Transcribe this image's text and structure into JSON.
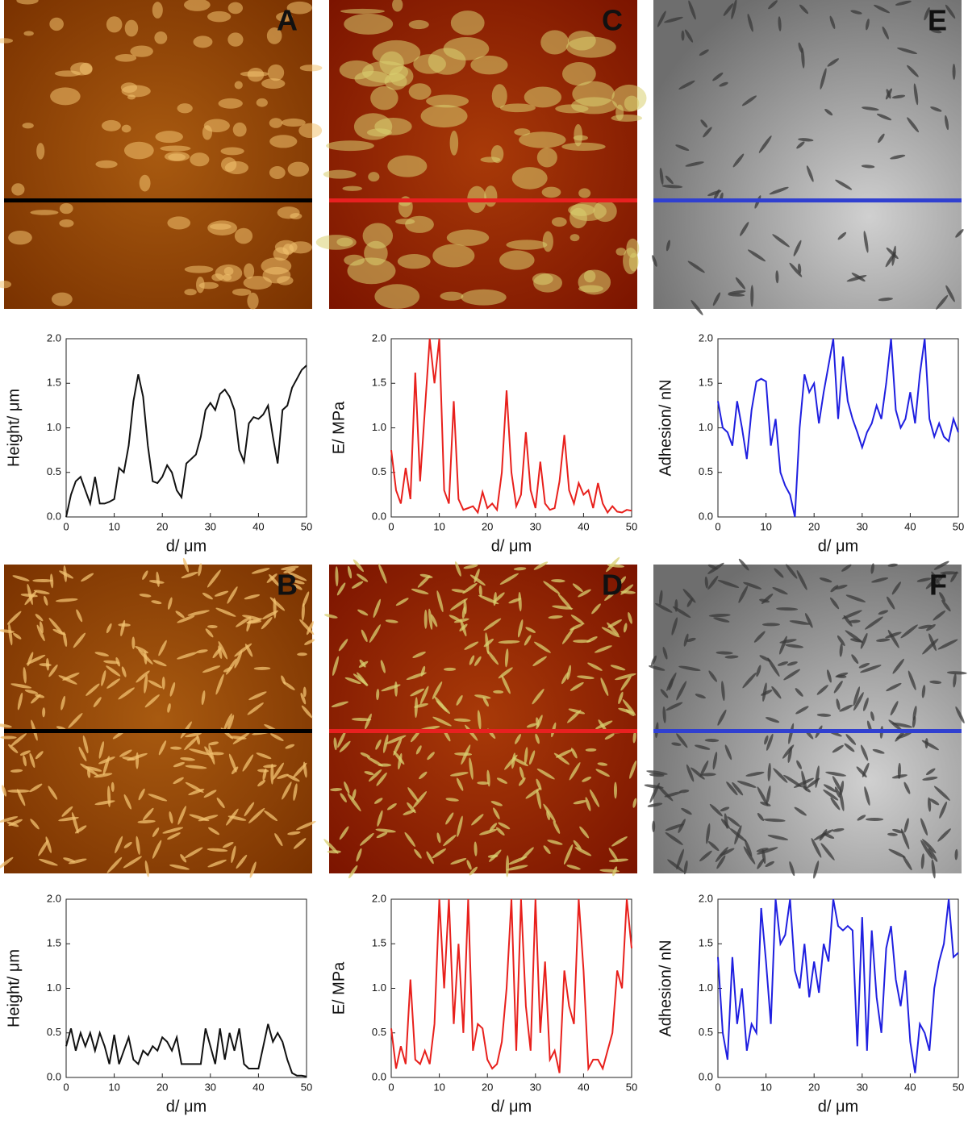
{
  "panels": [
    "A",
    "B",
    "C",
    "D",
    "E",
    "F"
  ],
  "chart_data": [
    {
      "type": "line",
      "ylabel": "Height/ μm",
      "xlabel": "d/ μm",
      "color": "#111111",
      "x": [
        0,
        1,
        2,
        3,
        4,
        5,
        6,
        7,
        8,
        9,
        10,
        11,
        12,
        13,
        14,
        15,
        16,
        17,
        18,
        19,
        20,
        21,
        22,
        23,
        24,
        25,
        26,
        27,
        28,
        29,
        30,
        31,
        32,
        33,
        34,
        35,
        36,
        37,
        38,
        39,
        40,
        41,
        42,
        43,
        44,
        45,
        46,
        47,
        48,
        49,
        50
      ],
      "values": [
        0,
        0.25,
        0.4,
        0.45,
        0.3,
        0.15,
        0.45,
        0.15,
        0.15,
        0.17,
        0.2,
        0.55,
        0.5,
        0.8,
        1.3,
        1.6,
        1.35,
        0.8,
        0.4,
        0.38,
        0.45,
        0.58,
        0.5,
        0.3,
        0.22,
        0.6,
        0.65,
        0.7,
        0.9,
        1.2,
        1.28,
        1.2,
        1.38,
        1.43,
        1.35,
        1.2,
        0.75,
        0.62,
        1.05,
        1.12,
        1.1,
        1.15,
        1.25,
        0.9,
        0.6,
        1.2,
        1.25,
        1.45,
        1.55,
        1.65,
        1.7
      ],
      "xlim": [
        0,
        50
      ],
      "ylim": [
        0,
        2
      ],
      "xticks": [
        0,
        10,
        20,
        30,
        40,
        50
      ],
      "yticks": [
        {
          "value": 0,
          "label": "0.0"
        },
        {
          "value": 0.5,
          "label": "0.5"
        },
        {
          "value": 1,
          "label": "1.0"
        },
        {
          "value": 1.5,
          "label": "1.5"
        },
        {
          "value": 2,
          "label": "2.0"
        }
      ]
    },
    {
      "type": "line",
      "ylabel": "E/ MPa",
      "xlabel": "d/ μm",
      "color": "#e8201c",
      "x": [
        0,
        1,
        2,
        3,
        4,
        5,
        6,
        7,
        8,
        9,
        10,
        11,
        12,
        13,
        14,
        15,
        16,
        17,
        18,
        19,
        20,
        21,
        22,
        23,
        24,
        25,
        26,
        27,
        28,
        29,
        30,
        31,
        32,
        33,
        34,
        35,
        36,
        37,
        38,
        39,
        40,
        41,
        42,
        43,
        44,
        45,
        46,
        47,
        48,
        49,
        50
      ],
      "values": [
        0.75,
        0.3,
        0.15,
        0.55,
        0.2,
        1.62,
        0.4,
        1.2,
        2,
        1.5,
        2,
        0.3,
        0.15,
        1.3,
        0.2,
        0.08,
        0.1,
        0.12,
        0.05,
        0.28,
        0.1,
        0.15,
        0.08,
        0.5,
        1.42,
        0.5,
        0.12,
        0.25,
        0.95,
        0.3,
        0.1,
        0.62,
        0.15,
        0.08,
        0.1,
        0.4,
        0.92,
        0.3,
        0.15,
        0.38,
        0.25,
        0.3,
        0.1,
        0.38,
        0.15,
        0.05,
        0.12,
        0.06,
        0.05,
        0.08,
        0.07
      ],
      "xlim": [
        0,
        50
      ],
      "ylim": [
        0,
        2
      ],
      "xticks": [
        0,
        10,
        20,
        30,
        40,
        50
      ],
      "yticks": [
        {
          "value": 0,
          "label": "0.0"
        },
        {
          "value": 0.5,
          "label": "0.5"
        },
        {
          "value": 1,
          "label": "1.0"
        },
        {
          "value": 1.5,
          "label": "1.5"
        },
        {
          "value": 2,
          "label": "2.0"
        }
      ]
    },
    {
      "type": "line",
      "ylabel": "Adhesion/ nN",
      "xlabel": "d/ μm",
      "color": "#1f1fe0",
      "x": [
        0,
        1,
        2,
        3,
        4,
        5,
        6,
        7,
        8,
        9,
        10,
        11,
        12,
        13,
        14,
        15,
        16,
        17,
        18,
        19,
        20,
        21,
        22,
        23,
        24,
        25,
        26,
        27,
        28,
        29,
        30,
        31,
        32,
        33,
        34,
        35,
        36,
        37,
        38,
        39,
        40,
        41,
        42,
        43,
        44,
        45,
        46,
        47,
        48,
        49,
        50
      ],
      "values": [
        1.3,
        1,
        0.95,
        0.8,
        1.3,
        1,
        0.65,
        1.2,
        1.52,
        1.55,
        1.52,
        0.8,
        1.1,
        0.5,
        0.35,
        0.25,
        0,
        1,
        1.6,
        1.4,
        1.5,
        1.05,
        1.4,
        1.7,
        2,
        1.1,
        1.8,
        1.3,
        1.1,
        0.95,
        0.78,
        0.95,
        1.05,
        1.25,
        1.1,
        1.5,
        2,
        1.2,
        1,
        1.1,
        1.4,
        1.05,
        1.6,
        2,
        1.1,
        0.9,
        1.05,
        0.9,
        0.85,
        1.1,
        0.95
      ],
      "xlim": [
        0,
        50
      ],
      "ylim": [
        0,
        2
      ],
      "xticks": [
        0,
        10,
        20,
        30,
        40,
        50
      ],
      "yticks": [
        {
          "value": 0,
          "label": "0.0"
        },
        {
          "value": 0.5,
          "label": "0.5"
        },
        {
          "value": 1,
          "label": "1.0"
        },
        {
          "value": 1.5,
          "label": "1.5"
        },
        {
          "value": 2,
          "label": "2.0"
        }
      ]
    },
    {
      "type": "line",
      "ylabel": "Height/ μm",
      "xlabel": "d/ μm",
      "color": "#111111",
      "x": [
        0,
        1,
        2,
        3,
        4,
        5,
        6,
        7,
        8,
        9,
        10,
        11,
        12,
        13,
        14,
        15,
        16,
        17,
        18,
        19,
        20,
        21,
        22,
        23,
        24,
        25,
        26,
        27,
        28,
        29,
        30,
        31,
        32,
        33,
        34,
        35,
        36,
        37,
        38,
        39,
        40,
        41,
        42,
        43,
        44,
        45,
        46,
        47,
        48,
        49,
        50
      ],
      "values": [
        0.35,
        0.55,
        0.3,
        0.5,
        0.35,
        0.5,
        0.3,
        0.5,
        0.35,
        0.15,
        0.48,
        0.15,
        0.3,
        0.45,
        0.2,
        0.15,
        0.3,
        0.25,
        0.35,
        0.3,
        0.45,
        0.4,
        0.3,
        0.45,
        0.15,
        0.15,
        0.15,
        0.15,
        0.15,
        0.55,
        0.35,
        0.15,
        0.55,
        0.2,
        0.5,
        0.3,
        0.55,
        0.15,
        0.1,
        0.1,
        0.1,
        0.35,
        0.6,
        0.4,
        0.5,
        0.4,
        0.2,
        0.05,
        0.02,
        0.02,
        0.01
      ],
      "xlim": [
        0,
        50
      ],
      "ylim": [
        0,
        2
      ],
      "xticks": [
        0,
        10,
        20,
        30,
        40,
        50
      ],
      "yticks": [
        {
          "value": 0,
          "label": "0.0"
        },
        {
          "value": 0.5,
          "label": "0.5"
        },
        {
          "value": 1,
          "label": "1.0"
        },
        {
          "value": 1.5,
          "label": "1.5"
        },
        {
          "value": 2,
          "label": "2.0"
        }
      ]
    },
    {
      "type": "line",
      "ylabel": "E/ MPa",
      "xlabel": "d/ μm",
      "color": "#e8201c",
      "x": [
        0,
        1,
        2,
        3,
        4,
        5,
        6,
        7,
        8,
        9,
        10,
        11,
        12,
        13,
        14,
        15,
        16,
        17,
        18,
        19,
        20,
        21,
        22,
        23,
        24,
        25,
        26,
        27,
        28,
        29,
        30,
        31,
        32,
        33,
        34,
        35,
        36,
        37,
        38,
        39,
        40,
        41,
        42,
        43,
        44,
        45,
        46,
        47,
        48,
        49,
        50
      ],
      "values": [
        0.55,
        0.1,
        0.35,
        0.15,
        1.1,
        0.2,
        0.15,
        0.3,
        0.15,
        0.6,
        2,
        1,
        2,
        0.6,
        1.5,
        0.5,
        2,
        0.3,
        0.6,
        0.55,
        0.2,
        0.1,
        0.15,
        0.4,
        1,
        2,
        0.3,
        2,
        0.8,
        0.3,
        2,
        0.5,
        1.3,
        0.2,
        0.3,
        0.05,
        1.2,
        0.8,
        0.6,
        2,
        1.2,
        0.1,
        0.2,
        0.2,
        0.1,
        0.3,
        0.5,
        1.2,
        1,
        2,
        1.45
      ],
      "xlim": [
        0,
        50
      ],
      "ylim": [
        0,
        2
      ],
      "xticks": [
        0,
        10,
        20,
        30,
        40,
        50
      ],
      "yticks": [
        {
          "value": 0,
          "label": "0.0"
        },
        {
          "value": 0.5,
          "label": "0.5"
        },
        {
          "value": 1,
          "label": "1.0"
        },
        {
          "value": 1.5,
          "label": "1.5"
        },
        {
          "value": 2,
          "label": "2.0"
        }
      ]
    },
    {
      "type": "line",
      "ylabel": "Adhesion/ nN",
      "xlabel": "d/ μm",
      "color": "#1f1fe0",
      "x": [
        0,
        1,
        2,
        3,
        4,
        5,
        6,
        7,
        8,
        9,
        10,
        11,
        12,
        13,
        14,
        15,
        16,
        17,
        18,
        19,
        20,
        21,
        22,
        23,
        24,
        25,
        26,
        27,
        28,
        29,
        30,
        31,
        32,
        33,
        34,
        35,
        36,
        37,
        38,
        39,
        40,
        41,
        42,
        43,
        44,
        45,
        46,
        47,
        48,
        49,
        50
      ],
      "values": [
        1.35,
        0.5,
        0.2,
        1.35,
        0.6,
        1,
        0.3,
        0.6,
        0.5,
        1.9,
        1.3,
        0.6,
        2,
        1.5,
        1.6,
        2,
        1.2,
        1,
        1.5,
        0.9,
        1.3,
        0.95,
        1.5,
        1.3,
        2,
        1.7,
        1.65,
        1.7,
        1.65,
        0.35,
        1.8,
        0.3,
        1.65,
        0.9,
        0.5,
        1.45,
        1.7,
        1.1,
        0.8,
        1.2,
        0.4,
        0.05,
        0.6,
        0.5,
        0.3,
        1,
        1.3,
        1.5,
        2,
        1.35,
        1.4
      ],
      "xlim": [
        0,
        50
      ],
      "ylim": [
        0,
        2
      ],
      "xticks": [
        0,
        10,
        20,
        30,
        40,
        50
      ],
      "yticks": [
        {
          "value": 0,
          "label": "0.0"
        },
        {
          "value": 0.5,
          "label": "0.5"
        },
        {
          "value": 1,
          "label": "1.0"
        },
        {
          "value": 1.5,
          "label": "1.5"
        },
        {
          "value": 2,
          "label": "2.0"
        }
      ]
    }
  ]
}
